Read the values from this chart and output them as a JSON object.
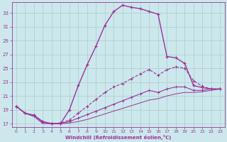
{
  "xlabel": "Windchill (Refroidissement éolien,°C)",
  "bg_color": "#cce8ec",
  "grid_color": "#aacccc",
  "line_color": "#993399",
  "xlim": [
    -0.5,
    23.5
  ],
  "ylim": [
    16.5,
    34.5
  ],
  "yticks": [
    17,
    19,
    21,
    23,
    25,
    27,
    29,
    31,
    33
  ],
  "xticks": [
    0,
    1,
    2,
    3,
    4,
    5,
    6,
    7,
    8,
    9,
    10,
    11,
    12,
    13,
    14,
    15,
    16,
    17,
    18,
    19,
    20,
    21,
    22,
    23
  ],
  "c1x": [
    0,
    1,
    2,
    3,
    4,
    5,
    6,
    7,
    8,
    9,
    10,
    11,
    12,
    13,
    14,
    15,
    16,
    17,
    18,
    19,
    20,
    21,
    22,
    23
  ],
  "c1y": [
    19.5,
    18.5,
    18.2,
    17.2,
    17.0,
    17.0,
    19.0,
    22.5,
    25.5,
    28.2,
    31.2,
    33.2,
    34.1,
    33.8,
    33.6,
    33.2,
    32.8,
    26.7,
    26.5,
    25.7,
    22.5,
    22.2,
    22.0,
    22.0
  ],
  "c2x": [
    0,
    1,
    2,
    3,
    4,
    5,
    6,
    7,
    8,
    9,
    10,
    11,
    12,
    13,
    14,
    15,
    16,
    17,
    18,
    19,
    20,
    21,
    22,
    23
  ],
  "c2y": [
    19.5,
    18.5,
    18.2,
    17.3,
    17.0,
    17.1,
    17.5,
    18.5,
    19.5,
    20.5,
    21.5,
    22.3,
    22.8,
    23.5,
    24.2,
    24.8,
    24.0,
    24.8,
    25.2,
    25.0,
    23.2,
    22.4,
    22.0,
    22.0
  ],
  "c3x": [
    0,
    1,
    2,
    3,
    4,
    5,
    6,
    7,
    8,
    9,
    10,
    11,
    12,
    13,
    14,
    15,
    16,
    17,
    18,
    19,
    20,
    21,
    22,
    23
  ],
  "c3y": [
    19.5,
    18.5,
    18.2,
    17.3,
    17.0,
    17.0,
    17.3,
    17.8,
    18.3,
    18.8,
    19.3,
    19.8,
    20.3,
    20.8,
    21.3,
    21.8,
    21.5,
    22.0,
    22.3,
    22.3,
    21.8,
    21.8,
    22.0,
    22.0
  ],
  "c4x": [
    0,
    1,
    2,
    3,
    4,
    5,
    6,
    7,
    8,
    9,
    10,
    11,
    12,
    13,
    14,
    15,
    16,
    17,
    18,
    19,
    20,
    21,
    22,
    23
  ],
  "c4y": [
    19.5,
    18.5,
    18.0,
    17.0,
    17.0,
    17.0,
    17.1,
    17.3,
    17.6,
    18.0,
    18.4,
    18.8,
    19.2,
    19.6,
    20.0,
    20.4,
    20.6,
    21.0,
    21.3,
    21.5,
    21.5,
    21.6,
    21.8,
    22.0
  ]
}
